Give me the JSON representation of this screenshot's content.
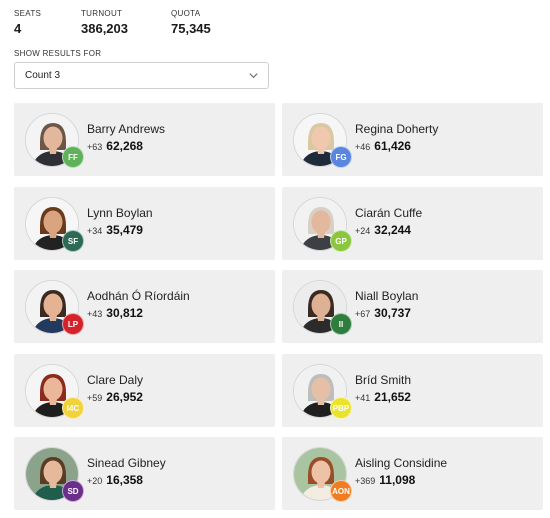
{
  "stats": [
    {
      "label": "SEATS",
      "value": "4"
    },
    {
      "label": "TURNOUT",
      "value": "386,203"
    },
    {
      "label": "QUOTA",
      "value": "75,345"
    }
  ],
  "filter": {
    "label": "SHOW RESULTS FOR",
    "selected": "Count 3",
    "icon": "chevron-down-icon"
  },
  "candidates": [
    {
      "name": "Barry Andrews",
      "delta": "+63",
      "total": "62,268",
      "party": "FF",
      "party_color": "#5fb15a",
      "bg": "#f4f4f4",
      "skin": "#e2b79c",
      "hair": "#6b5647",
      "shirt": "#2f2f36"
    },
    {
      "name": "Regina Doherty",
      "delta": "+46",
      "total": "61,426",
      "party": "FG",
      "party_color": "#5a86e0",
      "bg": "#f6f6f6",
      "skin": "#efc8ae",
      "hair": "#d9c8a2",
      "shirt": "#1f2a3a"
    },
    {
      "name": "Lynn Boylan",
      "delta": "+34",
      "total": "35,479",
      "party": "SF",
      "party_color": "#2d6a56",
      "bg": "#f6f6f6",
      "skin": "#d9a47f",
      "hair": "#6a3a1c",
      "shirt": "#222222"
    },
    {
      "name": "Ciarán Cuffe",
      "delta": "+24",
      "total": "32,244",
      "party": "GP",
      "party_color": "#8cc63f",
      "bg": "#f2f2f2",
      "skin": "#e3b89d",
      "hair": "#d8d0c4",
      "shirt": "#3c3f44"
    },
    {
      "name": "Aodhán Ó Ríordáin",
      "delta": "+43",
      "total": "30,812",
      "party": "LP",
      "party_color": "#d3222a",
      "bg": "#f3f3f3",
      "skin": "#e4b394",
      "hair": "#3b2a22",
      "shirt": "#223a5e"
    },
    {
      "name": "Niall Boylan",
      "delta": "+67",
      "total": "30,737",
      "party": "II",
      "party_color": "#2e7d3c",
      "bg": "#ececec",
      "skin": "#deb094",
      "hair": "#3a2a22",
      "shirt": "#2b2b2b"
    },
    {
      "name": "Clare Daly",
      "delta": "+59",
      "total": "26,952",
      "party": "I4C",
      "party_color": "#f2d23a",
      "bg": "#f5f5f5",
      "skin": "#eab79a",
      "hair": "#8a2b1d",
      "shirt": "#1e1e1e"
    },
    {
      "name": "Bríd Smith",
      "delta": "+41",
      "total": "21,652",
      "party": "PBP",
      "party_color": "#e9e32a",
      "bg": "#f1f1f1",
      "skin": "#e6c0a6",
      "hair": "#bdbdbd",
      "shirt": "#1f1f1f"
    },
    {
      "name": "Sinead Gibney",
      "delta": "+20",
      "total": "16,358",
      "party": "SD",
      "party_color": "#6b2e8c",
      "bg": "#8aa38a",
      "skin": "#e7b99b",
      "hair": "#5a3c24",
      "shirt": "#1f5d4c"
    },
    {
      "name": "Aisling Considine",
      "delta": "+369",
      "total": "11,098",
      "party": "AON",
      "party_color": "#f07d22",
      "bg": "#a8c4a0",
      "skin": "#edc2a6",
      "hair": "#9a4d2a",
      "shirt": "#f3ece2"
    }
  ]
}
